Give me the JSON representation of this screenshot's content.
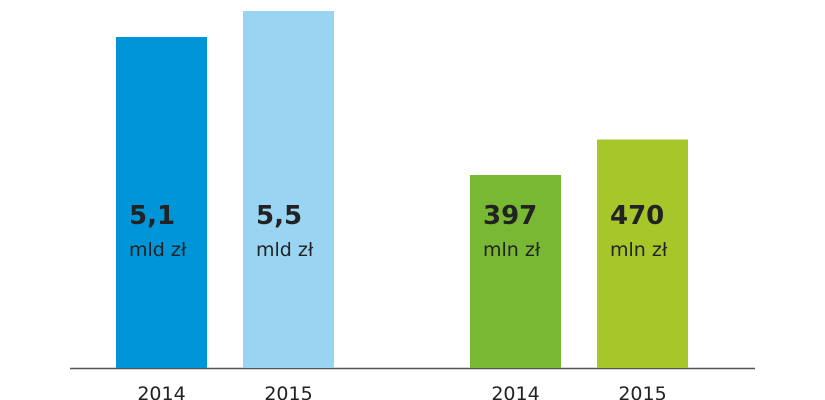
{
  "chart_data": [
    {
      "type": "bar",
      "categories": [
        "2014",
        "2015"
      ],
      "values": [
        5.1,
        5.5
      ],
      "value_labels": [
        "5,1",
        "5,5"
      ],
      "unit": "mld zł",
      "colors": [
        "#0095d9",
        "#99d5f3"
      ],
      "ylim": [
        0,
        5.67
      ]
    },
    {
      "type": "bar",
      "categories": [
        "2014",
        "2015"
      ],
      "values": [
        397,
        470
      ],
      "unit": "mln zł",
      "colors": [
        "#78b833",
        "#a7c62a"
      ],
      "ylim": [
        0,
        757
      ]
    }
  ]
}
